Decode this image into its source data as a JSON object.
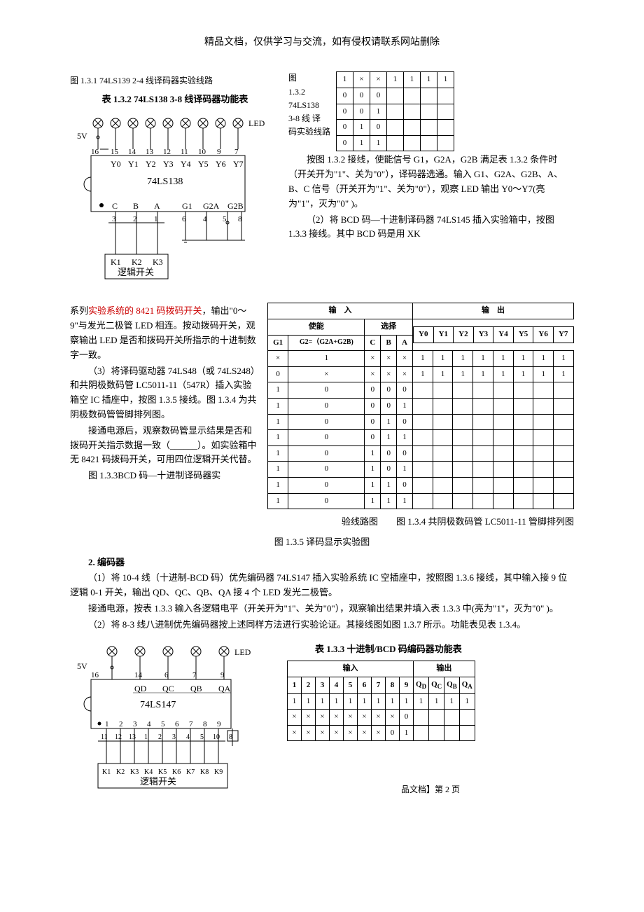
{
  "header_note": "精品文档，仅供学习与交流，如有侵权请联系网站删除",
  "fig131_title": "图 1.3.1 74LS139 2-4 线译码器实验线路",
  "tbl132_title": "表 1.3.2 74LS138 3-8 线译码器功能表",
  "vcc_label": "5V",
  "led_label": "LED",
  "pins_top": [
    "16",
    "15",
    "14",
    "13",
    "12",
    "11",
    "10",
    "9",
    "7"
  ],
  "y_labels": [
    "Y0",
    "Y1",
    "Y2",
    "Y3",
    "Y4",
    "Y5",
    "Y6",
    "Y7"
  ],
  "chip138": "74LS138",
  "cba": [
    "C",
    "B",
    "A"
  ],
  "g_labels": [
    "G1",
    "G2A",
    "G2B"
  ],
  "pins_bot": [
    "3",
    "2",
    "1",
    "6",
    "4",
    "5",
    "8"
  ],
  "k_labels": [
    "K1",
    "K2",
    "K3"
  ],
  "logic_switch": "逻辑开关",
  "fig132_side": "图 1.3.2 74LS138 3-8 线 译码实验线路",
  "small_tbl_rows": [
    [
      "1",
      "×",
      "×",
      "1",
      "1",
      "1",
      "1"
    ],
    [
      "0",
      "0",
      "0",
      "",
      "",
      "",
      ""
    ],
    [
      "0",
      "0",
      "1",
      "",
      "",
      "",
      ""
    ],
    [
      "0",
      "1",
      "0",
      "",
      "",
      "",
      ""
    ],
    [
      "0",
      "1",
      "1",
      "",
      "",
      "",
      ""
    ]
  ],
  "para1": "按图 1.3.2 接线，使能信号 G1，G2A，G2B 满足表 1.3.2 条件时（开关开为\"1\"、关为\"0\"），译码器选通。输入 G1、G2A、G2B、A、B、C 信号（开关开为\"1\"、关为\"0\"），观察 LED 输出 Y0～Y7(亮为\"1\"，灭为\"0\" )。",
  "para2": "（2）将 BCD 码—十进制译码器 74LS145 插入实验箱中，按图 1.3.3 接线。其中 BCD 码是用 XK",
  "para3a": "系列",
  "para3red": "实验系统的 8421 码拨码开关",
  "para3b": "，输出\"0～9\"与发光二极管 LED 相连。按动拨码开关，观察输出 LED 是否和拨码开关所指示的十进制数字一致。",
  "para4": "（3）将译码驱动器 74LS48（或 74LS248）和共阴极数码管 LC5011-11（547R）插入实验箱空 IC 插座中，按图 1.3.5 接线。图 1.3.4 为共阴极数码管管脚排列图。",
  "para5": "接通电源后，观察数码管显示结果是否和拨码开关指示数据一致（______）。如实验箱中无 8421 码拨码开关，可用四位逻辑开关代替。",
  "fig133_title": "图 1.3.3BCD 码—十进制译码器实",
  "fig133_tail": "验线路图　　图 1.3.4 共阴极数码管 LC5011-11 管脚排列图",
  "fig135_title": "图 1.3.5 译码显示实验图",
  "big_tbl": {
    "in_label": "输　入",
    "out_label": "输　出",
    "en_label": "使能",
    "sel_label": "选择",
    "g1": "G1",
    "g2": "G2=（G2A+G2B)",
    "cba": [
      "C",
      "B",
      "A"
    ],
    "ys": [
      "Y0",
      "Y1",
      "Y2",
      "Y3",
      "Y4",
      "Y5",
      "Y6",
      "Y7"
    ],
    "rows": [
      [
        "×",
        "1",
        "×",
        "×",
        "×",
        "1",
        "1",
        "1",
        "1",
        "1",
        "1",
        "1",
        "1"
      ],
      [
        "0",
        "×",
        "×",
        "×",
        "×",
        "1",
        "1",
        "1",
        "1",
        "1",
        "1",
        "1",
        "1"
      ],
      [
        "1",
        "0",
        "0",
        "0",
        "0",
        "",
        "",
        "",
        "",
        "",
        "",
        "",
        ""
      ],
      [
        "1",
        "0",
        "0",
        "0",
        "1",
        "",
        "",
        "",
        "",
        "",
        "",
        "",
        ""
      ],
      [
        "1",
        "0",
        "0",
        "1",
        "0",
        "",
        "",
        "",
        "",
        "",
        "",
        "",
        ""
      ],
      [
        "1",
        "0",
        "0",
        "1",
        "1",
        "",
        "",
        "",
        "",
        "",
        "",
        "",
        ""
      ],
      [
        "1",
        "0",
        "1",
        "0",
        "0",
        "",
        "",
        "",
        "",
        "",
        "",
        "",
        ""
      ],
      [
        "1",
        "0",
        "1",
        "0",
        "1",
        "",
        "",
        "",
        "",
        "",
        "",
        "",
        ""
      ],
      [
        "1",
        "0",
        "1",
        "1",
        "0",
        "",
        "",
        "",
        "",
        "",
        "",
        "",
        ""
      ],
      [
        "1",
        "0",
        "1",
        "1",
        "1",
        "",
        "",
        "",
        "",
        "",
        "",
        "",
        ""
      ]
    ]
  },
  "sec2_title": "2. 编码器",
  "sec2_p1": "（1）将 10-4 线（十进制-BCD 码）优先编码器 74LS147 插入实验系统 IC 空插座中，按照图 1.3.6 接线，其中输入接 9 位逻辑 0-1 开关，输出 QD、QC、QB、QA 接 4 个 LED 发光二极管。",
  "sec2_p2": "接通电源，按表 1.3.3 输入各逻辑电平（开关开为\"1\"、关为\"0\"），观察输出结果并填入表 1.3.3 中(亮为\"1\"，灭为\"0\" )。",
  "sec2_p3": "（2）将 8-3 线八进制优先编码器按上述同样方法进行实验论证。其接线图如图 1.3.7 所示。功能表见表 1.3.4。",
  "chip147": "74LS147",
  "q_labels": [
    "QD",
    "QC",
    "QB",
    "QA"
  ],
  "pins147_top": [
    "16",
    "14",
    "6",
    "7",
    "9"
  ],
  "nums19": [
    "1",
    "2",
    "3",
    "4",
    "5",
    "6",
    "7",
    "8",
    "9"
  ],
  "pins147_bot": [
    "11",
    "12",
    "13",
    "1",
    "2",
    "3",
    "4",
    "5",
    "10",
    "8"
  ],
  "k19": [
    "K1",
    "K2",
    "K3",
    "K4",
    "K5",
    "K6",
    "K7",
    "K8",
    "K9"
  ],
  "tbl133_title": "表 1.3.3 十进制/BCD 码编码器功能表",
  "t133": {
    "in": "输入",
    "out": "输出",
    "cols_in": [
      "1",
      "2",
      "3",
      "4",
      "5",
      "6",
      "7",
      "8",
      "9"
    ],
    "cols_out": [
      "QD",
      "QC",
      "QB",
      "QA"
    ],
    "rows": [
      [
        "1",
        "1",
        "1",
        "1",
        "1",
        "1",
        "1",
        "1",
        "1",
        "1",
        "1",
        "1",
        "1"
      ],
      [
        "×",
        "×",
        "×",
        "×",
        "×",
        "×",
        "×",
        "×",
        "0",
        "",
        "",
        "",
        ""
      ],
      [
        "×",
        "×",
        "×",
        "×",
        "×",
        "×",
        "×",
        "0",
        "1",
        "",
        "",
        "",
        ""
      ]
    ]
  },
  "footer": "品文档】第 2 页"
}
